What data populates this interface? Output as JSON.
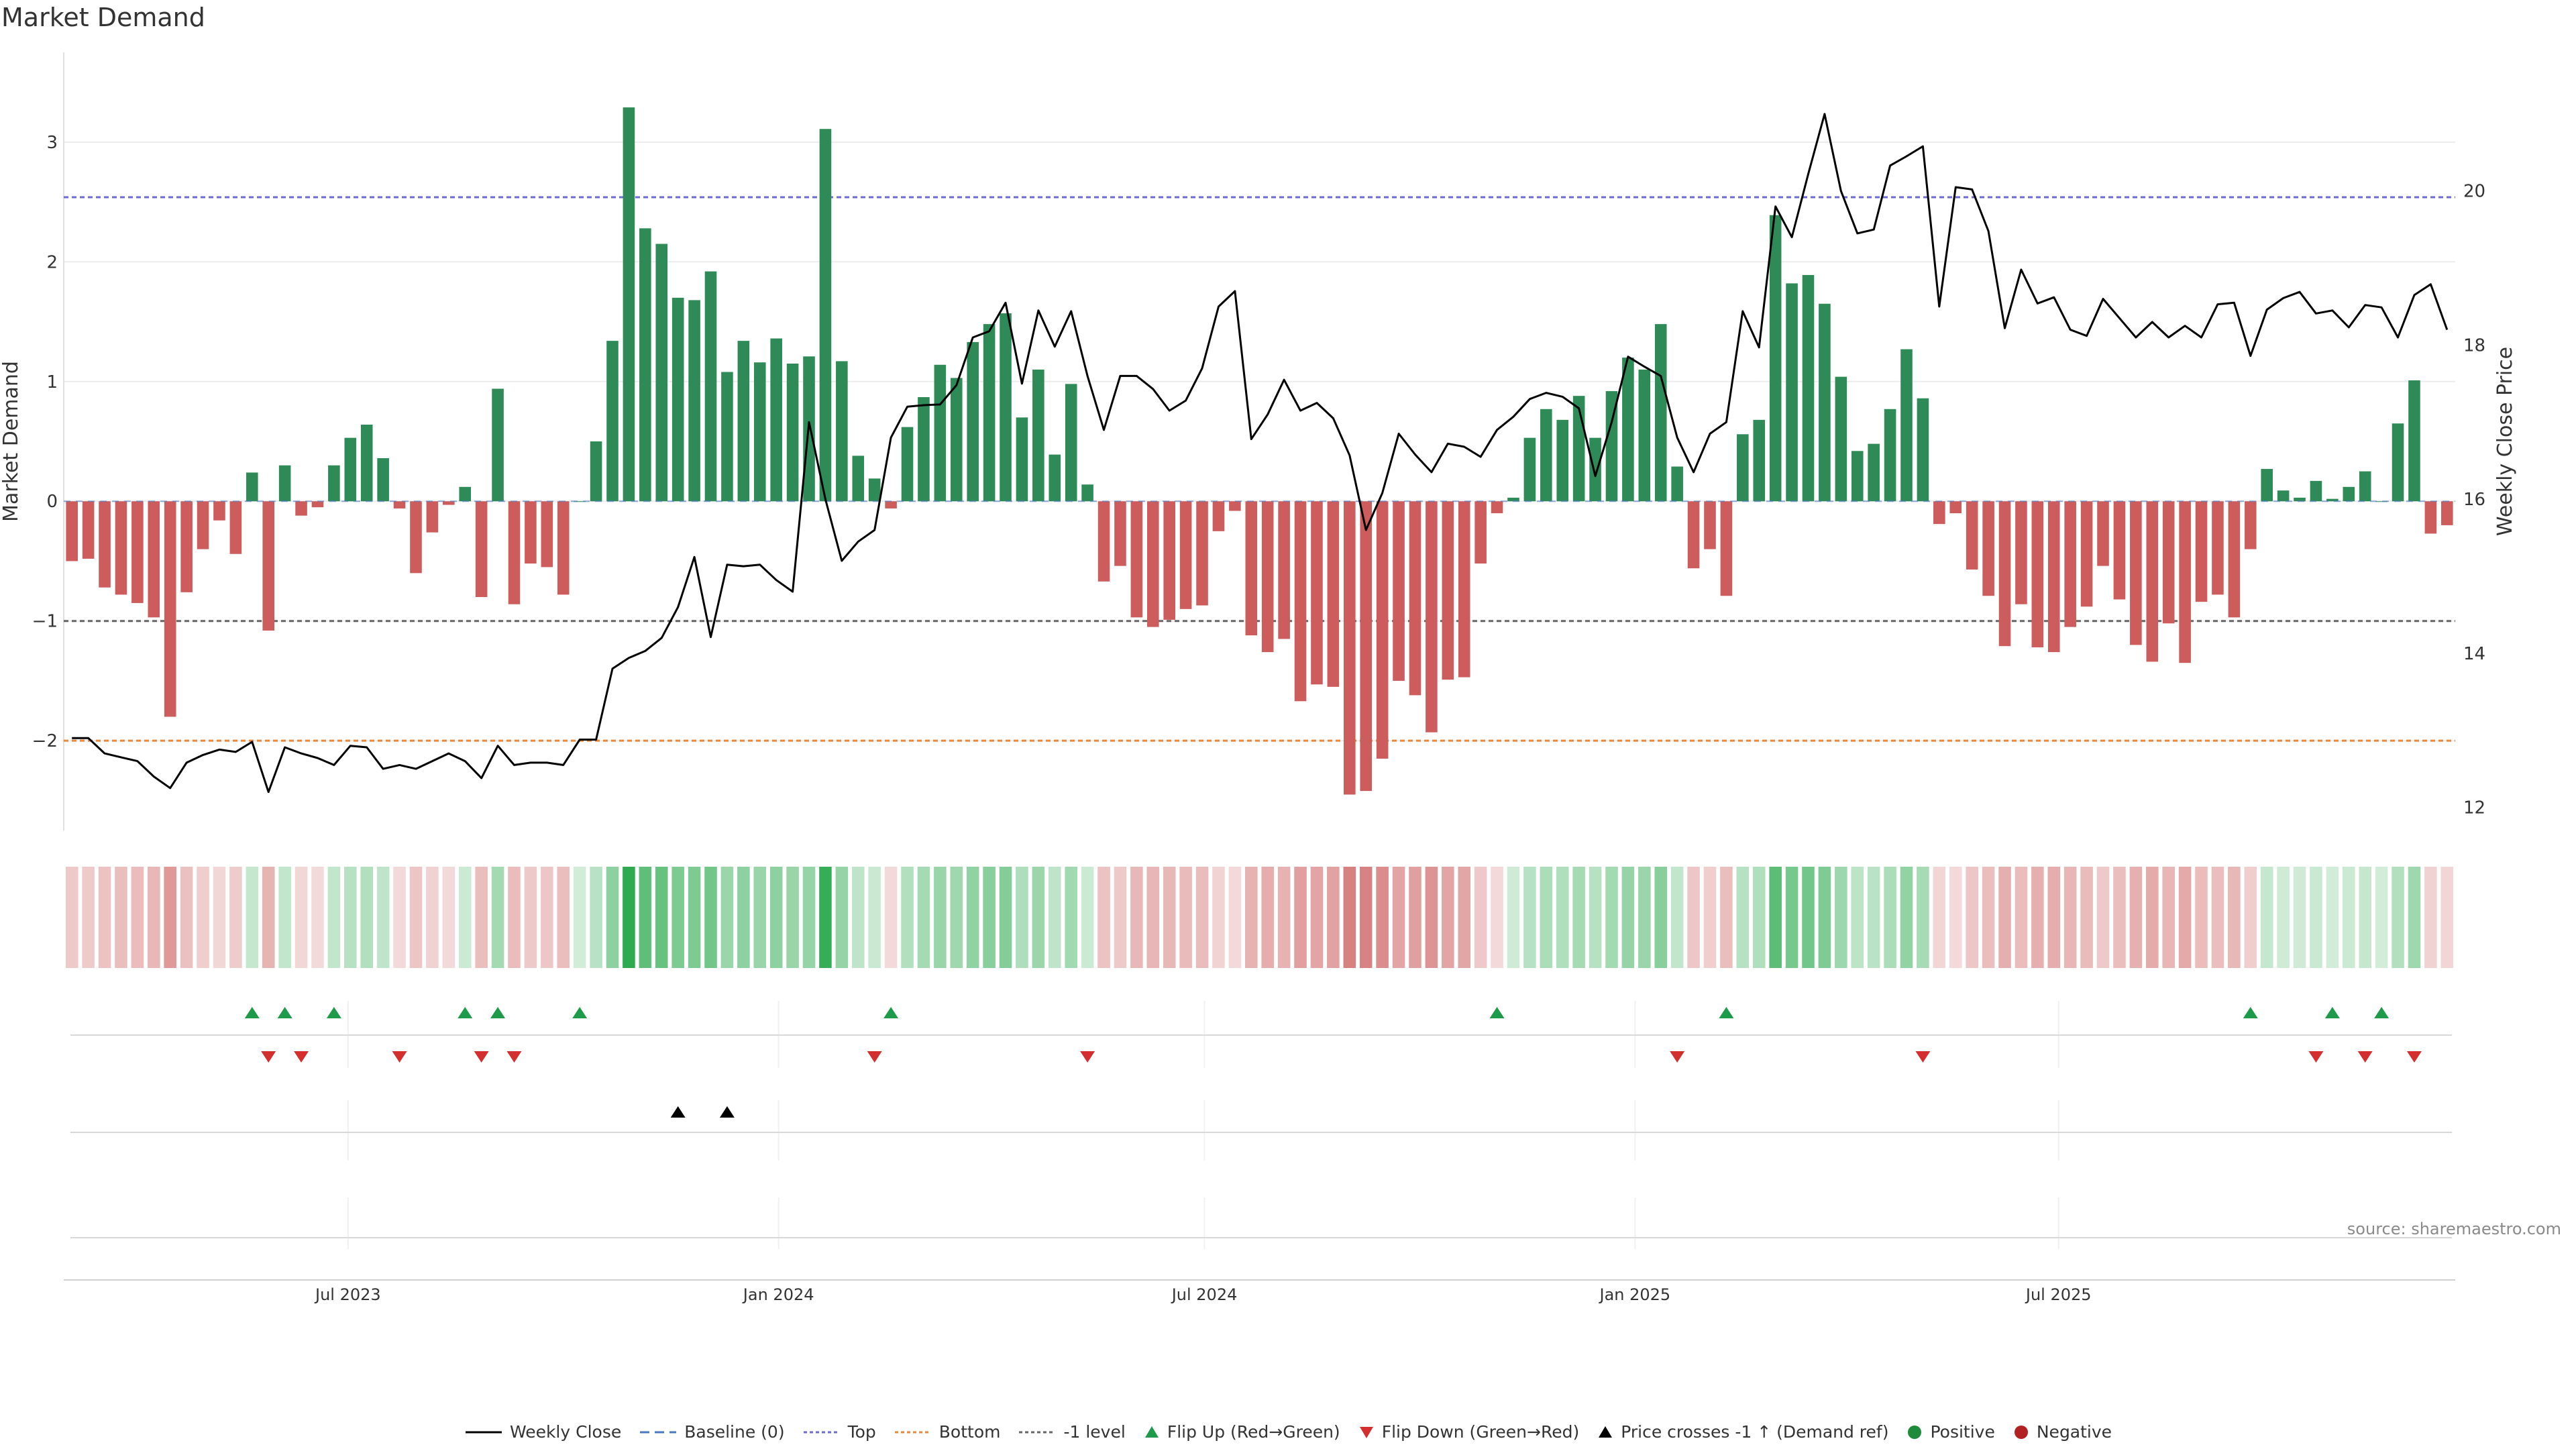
{
  "chart_data": {
    "type": "bar",
    "title": "Market Demand",
    "ylabel": "Market Demand",
    "y2label": "Weekly Close Price",
    "ylim": [
      -2.75,
      3.75
    ],
    "y2lim": [
      11.7,
      21.8
    ],
    "yticks": [
      -2,
      -1,
      0,
      1,
      2,
      3
    ],
    "ytick_labels": [
      "−2",
      "−1",
      "0",
      "1",
      "2",
      "3"
    ],
    "y2ticks": [
      12,
      14,
      16,
      18,
      20
    ],
    "y2tick_labels": [
      "12",
      "14",
      "16",
      "18",
      "20"
    ],
    "x_start": "2023-03-05",
    "period_days": 7,
    "xticks": [
      {
        "date": "2023-07-01",
        "label": "Jul 2023"
      },
      {
        "date": "2024-01-01",
        "label": "Jan 2024"
      },
      {
        "date": "2024-07-01",
        "label": "Jul 2024"
      },
      {
        "date": "2025-01-01",
        "label": "Jan 2025"
      },
      {
        "date": "2025-07-01",
        "label": "Jul 2025"
      }
    ],
    "ref_lines": [
      {
        "name": "Top",
        "value": 2.54,
        "color": "#6b6bd6"
      },
      {
        "name": "Bottom",
        "value": -2.0,
        "color": "#e8883a"
      },
      {
        "name": "-1 level",
        "value": -1.0,
        "color": "#666666"
      }
    ],
    "series": [
      {
        "name": "Market Demand",
        "type": "bar",
        "positive_color": "#2e8b57",
        "negative_color": "#cd5c5c",
        "values": [
          -0.5,
          -0.48,
          -0.72,
          -0.78,
          -0.85,
          -0.97,
          -1.8,
          -0.76,
          -0.4,
          -0.16,
          -0.44,
          0.24,
          -1.08,
          0.3,
          -0.12,
          -0.05,
          0.3,
          0.53,
          0.64,
          0.36,
          -0.06,
          -0.6,
          -0.26,
          -0.03,
          0.12,
          -0.8,
          0.94,
          -0.86,
          -0.52,
          -0.55,
          -0.78,
          0.0,
          0.5,
          1.34,
          3.29,
          2.28,
          2.15,
          1.7,
          1.68,
          1.92,
          1.08,
          1.34,
          1.16,
          1.36,
          1.15,
          1.21,
          3.11,
          1.17,
          0.38,
          0.19,
          -0.06,
          0.62,
          0.87,
          1.14,
          1.03,
          1.33,
          1.48,
          1.57,
          0.7,
          1.1,
          0.39,
          0.98,
          0.14,
          -0.67,
          -0.54,
          -0.97,
          -1.05,
          -0.99,
          -0.9,
          -0.87,
          -0.25,
          -0.08,
          -1.12,
          -1.26,
          -1.15,
          -1.67,
          -1.53,
          -1.55,
          -2.45,
          -2.42,
          -2.15,
          -1.5,
          -1.62,
          -1.93,
          -1.49,
          -1.47,
          -0.52,
          -0.1,
          0.03,
          0.53,
          0.77,
          0.68,
          0.88,
          0.53,
          0.92,
          1.2,
          1.1,
          1.48,
          0.29,
          -0.56,
          -0.4,
          -0.79,
          0.56,
          0.68,
          2.39,
          1.82,
          1.89,
          1.65,
          1.04,
          0.42,
          0.48,
          0.77,
          1.27,
          0.86,
          -0.19,
          -0.1,
          -0.57,
          -0.79,
          -1.21,
          -0.86,
          -1.22,
          -1.26,
          -1.05,
          -0.88,
          -0.54,
          -0.82,
          -1.2,
          -1.34,
          -1.02,
          -1.35,
          -0.84,
          -0.78,
          -0.97,
          -0.4,
          0.27,
          0.09,
          0.03,
          0.17,
          0.02,
          0.12,
          0.25,
          0.0,
          0.65,
          1.01,
          -0.27,
          -0.2
        ]
      },
      {
        "name": "Weekly Close",
        "type": "line",
        "axis": "right",
        "color": "#000000",
        "values": [
          12.9,
          12.9,
          12.7,
          12.65,
          12.6,
          12.4,
          12.25,
          12.58,
          12.68,
          12.75,
          12.72,
          12.85,
          12.2,
          12.78,
          12.7,
          12.64,
          12.55,
          12.8,
          12.78,
          12.5,
          12.55,
          12.5,
          12.6,
          12.7,
          12.6,
          12.38,
          12.8,
          12.55,
          12.58,
          12.58,
          12.55,
          12.88,
          12.88,
          13.8,
          13.94,
          14.03,
          14.2,
          14.6,
          15.25,
          14.21,
          15.15,
          15.13,
          15.15,
          14.95,
          14.8,
          17.0,
          16.0,
          15.2,
          15.45,
          15.6,
          16.8,
          17.2,
          17.22,
          17.23,
          17.48,
          18.1,
          18.18,
          18.55,
          17.5,
          18.45,
          17.98,
          18.44,
          17.6,
          16.9,
          17.6,
          17.6,
          17.43,
          17.15,
          17.28,
          17.7,
          18.5,
          18.7,
          16.78,
          17.1,
          17.55,
          17.15,
          17.25,
          17.05,
          16.57,
          15.6,
          16.08,
          16.85,
          16.58,
          16.35,
          16.72,
          16.68,
          16.55,
          16.9,
          17.07,
          17.3,
          17.38,
          17.33,
          17.18,
          16.3,
          17.0,
          17.85,
          17.72,
          17.6,
          16.8,
          16.35,
          16.85,
          17.0,
          18.44,
          17.97,
          19.8,
          19.4,
          20.22,
          21.0,
          20.0,
          19.45,
          19.5,
          20.33,
          20.45,
          20.58,
          18.5,
          20.05,
          20.02,
          19.48,
          18.22,
          18.98,
          18.54,
          18.62,
          18.2,
          18.12,
          18.6,
          18.35,
          18.1,
          18.3,
          18.1,
          18.25,
          18.1,
          18.53,
          18.55,
          17.86,
          18.46,
          18.61,
          18.69,
          18.41,
          18.45,
          18.23,
          18.52,
          18.49,
          18.1,
          18.65,
          18.79,
          18.2
        ]
      }
    ],
    "heatmap": {
      "name": "Demand strip",
      "values_ref": "Market Demand"
    },
    "events": {
      "flip_up_indices": [
        11,
        13,
        16,
        24,
        26,
        31,
        50,
        87,
        101,
        133,
        138,
        141
      ],
      "flip_down_indices": [
        12,
        14,
        20,
        25,
        27,
        49,
        62,
        98,
        113,
        137,
        140,
        143
      ],
      "price_cross_indices": [
        37,
        40
      ]
    },
    "legend": [
      {
        "name": "Weekly Close",
        "symbol": "line",
        "color": "#000000"
      },
      {
        "name": "Baseline (0)",
        "symbol": "dash",
        "color": "#4a78c2"
      },
      {
        "name": "Top",
        "symbol": "dot",
        "color": "#6b6bd6"
      },
      {
        "name": "Bottom",
        "symbol": "dot",
        "color": "#e8883a"
      },
      {
        "name": "-1 level",
        "symbol": "dot",
        "color": "#666666"
      },
      {
        "name": "Flip Up (Red→Green)",
        "symbol": "triangle-up",
        "color": "#1e9b4a"
      },
      {
        "name": "Flip Down (Green→Red)",
        "symbol": "triangle-down",
        "color": "#d32f2f"
      },
      {
        "name": "Price crosses -1 ↑ (Demand ref)",
        "symbol": "triangle-up",
        "color": "#000000"
      },
      {
        "name": "Positive",
        "symbol": "circle",
        "color": "#1e8b3a"
      },
      {
        "name": "Negative",
        "symbol": "circle",
        "color": "#b22222"
      }
    ],
    "source": "source: sharemaestro.com"
  }
}
